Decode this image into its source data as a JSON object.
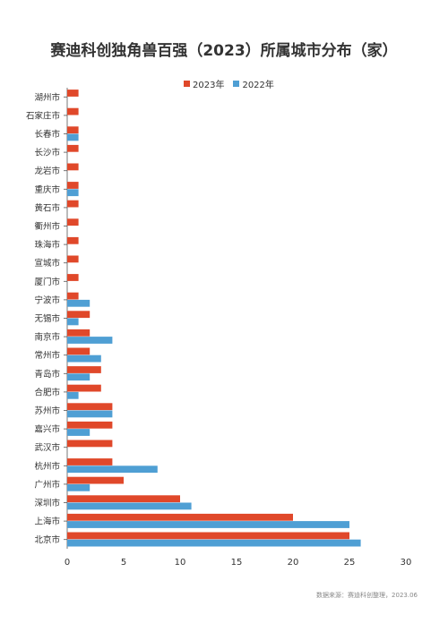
{
  "chart_data": {
    "type": "bar",
    "orientation": "horizontal",
    "title": "赛迪科创独角兽百强（2023）所属城市分布（家）",
    "categories": [
      "湖州市",
      "石家庄市",
      "长春市",
      "长沙市",
      "龙岩市",
      "重庆市",
      "黄石市",
      "衢州市",
      "珠海市",
      "宣城市",
      "厦门市",
      "宁波市",
      "无锡市",
      "南京市",
      "常州市",
      "青岛市",
      "合肥市",
      "苏州市",
      "嘉兴市",
      "武汉市",
      "杭州市",
      "广州市",
      "深圳市",
      "上海市",
      "北京市"
    ],
    "series": [
      {
        "name": "2023年",
        "color": "#e0482a",
        "values": [
          1,
          1,
          1,
          1,
          1,
          1,
          1,
          1,
          1,
          1,
          1,
          1,
          2,
          2,
          2,
          3,
          3,
          4,
          4,
          4,
          4,
          5,
          10,
          20,
          25
        ]
      },
      {
        "name": "2022年",
        "color": "#4f9fd4",
        "values": [
          0,
          0,
          1,
          0,
          0,
          1,
          0,
          0,
          0,
          0,
          0,
          2,
          1,
          4,
          3,
          2,
          1,
          4,
          2,
          0,
          8,
          2,
          11,
          25,
          26
        ]
      }
    ],
    "xlim": [
      0,
      30
    ],
    "xticks": [
      0,
      5,
      10,
      15,
      20,
      25,
      30
    ],
    "legend_position": "top-center",
    "grid": false
  },
  "source_note": "数据来源：赛迪科创整理，2023.06"
}
